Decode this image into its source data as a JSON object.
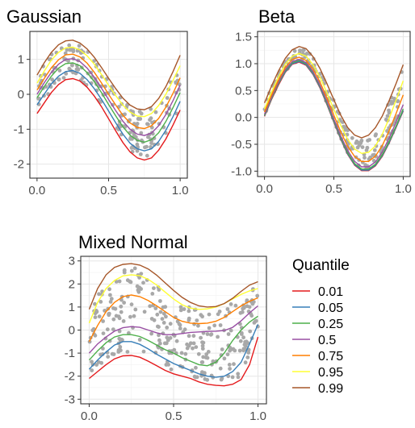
{
  "chart_data": [
    {
      "type": "scatter",
      "title": "Gaussian",
      "xlabel": "",
      "ylabel": "",
      "xlim": [
        -0.05,
        1.05
      ],
      "ylim": [
        -2.4,
        1.8
      ],
      "xticks": [
        0.0,
        0.5,
        1.0
      ],
      "xtick_labels": [
        "0.0",
        "0.5",
        "1.0"
      ],
      "yticks": [
        -2,
        -1,
        0,
        1
      ],
      "ytick_labels": [
        "-2",
        "-1",
        "0",
        "1"
      ],
      "grid": true,
      "point_color": "#a8a8a8",
      "x": [
        0.0,
        0.05,
        0.1,
        0.15,
        0.2,
        0.25,
        0.3,
        0.35,
        0.4,
        0.45,
        0.5,
        0.55,
        0.6,
        0.65,
        0.7,
        0.75,
        0.8,
        0.85,
        0.9,
        0.95,
        1.0
      ],
      "series": [
        {
          "quantile": "0.01",
          "color": "#e41a1c",
          "values": [
            -0.55,
            -0.25,
            0.05,
            0.28,
            0.42,
            0.45,
            0.38,
            0.2,
            -0.05,
            -0.35,
            -0.7,
            -1.05,
            -1.38,
            -1.65,
            -1.82,
            -1.88,
            -1.82,
            -1.6,
            -1.28,
            -0.88,
            -0.45
          ]
        },
        {
          "quantile": "0.05",
          "color": "#377eb8",
          "values": [
            -0.3,
            0.0,
            0.3,
            0.52,
            0.65,
            0.68,
            0.6,
            0.42,
            0.16,
            -0.14,
            -0.48,
            -0.82,
            -1.14,
            -1.4,
            -1.56,
            -1.62,
            -1.56,
            -1.35,
            -1.03,
            -0.64,
            -0.2
          ]
        },
        {
          "quantile": "0.25",
          "color": "#4daf4a",
          "values": [
            -0.1,
            0.22,
            0.52,
            0.75,
            0.88,
            0.9,
            0.82,
            0.62,
            0.36,
            0.05,
            -0.29,
            -0.62,
            -0.93,
            -1.17,
            -1.32,
            -1.37,
            -1.3,
            -1.1,
            -0.78,
            -0.38,
            0.05
          ]
        },
        {
          "quantile": "0.5",
          "color": "#984ea3",
          "values": [
            0.0,
            0.33,
            0.63,
            0.86,
            1.0,
            1.02,
            0.94,
            0.75,
            0.49,
            0.18,
            -0.15,
            -0.47,
            -0.77,
            -1.0,
            -1.14,
            -1.18,
            -1.11,
            -0.9,
            -0.58,
            -0.18,
            0.26
          ]
        },
        {
          "quantile": "0.75",
          "color": "#ff7f00",
          "values": [
            0.12,
            0.45,
            0.76,
            0.99,
            1.13,
            1.15,
            1.07,
            0.89,
            0.63,
            0.33,
            0.0,
            -0.31,
            -0.6,
            -0.82,
            -0.95,
            -0.98,
            -0.9,
            -0.69,
            -0.37,
            0.03,
            0.47
          ]
        },
        {
          "quantile": "0.95",
          "color": "#ffff33",
          "values": [
            0.32,
            0.66,
            0.98,
            1.2,
            1.33,
            1.35,
            1.27,
            1.1,
            0.86,
            0.57,
            0.26,
            -0.04,
            -0.31,
            -0.51,
            -0.62,
            -0.64,
            -0.55,
            -0.32,
            0.0,
            0.4,
            0.82
          ]
        },
        {
          "quantile": "0.99",
          "color": "#a65628",
          "values": [
            0.55,
            0.9,
            1.2,
            1.42,
            1.53,
            1.55,
            1.47,
            1.3,
            1.06,
            0.77,
            0.46,
            0.16,
            -0.11,
            -0.31,
            -0.42,
            -0.44,
            -0.35,
            -0.12,
            0.22,
            0.65,
            1.12
          ]
        }
      ]
    },
    {
      "type": "scatter",
      "title": "Beta",
      "xlabel": "",
      "ylabel": "",
      "xlim": [
        -0.05,
        1.05
      ],
      "ylim": [
        -1.1,
        1.6
      ],
      "xticks": [
        0.0,
        0.5,
        1.0
      ],
      "xtick_labels": [
        "0.0",
        "0.5",
        "1.0"
      ],
      "yticks": [
        -1.0,
        -0.5,
        0.0,
        0.5,
        1.0,
        1.5
      ],
      "ytick_labels": [
        "-1.0",
        "-0.5",
        "0.0",
        "0.5",
        "1.0",
        "1.5"
      ],
      "grid": true,
      "point_color": "#a8a8a8",
      "x": [
        0.0,
        0.05,
        0.1,
        0.15,
        0.2,
        0.25,
        0.3,
        0.35,
        0.4,
        0.45,
        0.5,
        0.55,
        0.6,
        0.65,
        0.7,
        0.75,
        0.8,
        0.85,
        0.9,
        0.95,
        1.0
      ],
      "series": [
        {
          "quantile": "0.01",
          "color": "#e41a1c",
          "values": [
            0.02,
            0.33,
            0.6,
            0.84,
            0.99,
            1.03,
            0.97,
            0.8,
            0.55,
            0.24,
            -0.09,
            -0.41,
            -0.69,
            -0.89,
            -0.99,
            -0.99,
            -0.9,
            -0.72,
            -0.47,
            -0.18,
            0.12
          ]
        },
        {
          "quantile": "0.05",
          "color": "#377eb8",
          "values": [
            0.03,
            0.34,
            0.62,
            0.85,
            1.0,
            1.04,
            0.98,
            0.81,
            0.56,
            0.25,
            -0.08,
            -0.4,
            -0.68,
            -0.88,
            -0.98,
            -0.98,
            -0.89,
            -0.71,
            -0.46,
            -0.17,
            0.13
          ]
        },
        {
          "quantile": "0.25",
          "color": "#4daf4a",
          "values": [
            0.04,
            0.35,
            0.63,
            0.87,
            1.02,
            1.06,
            1.0,
            0.83,
            0.58,
            0.27,
            -0.06,
            -0.38,
            -0.66,
            -0.86,
            -0.96,
            -0.96,
            -0.87,
            -0.69,
            -0.44,
            -0.15,
            0.16
          ]
        },
        {
          "quantile": "0.5",
          "color": "#984ea3",
          "values": [
            0.06,
            0.37,
            0.65,
            0.89,
            1.04,
            1.08,
            1.02,
            0.85,
            0.6,
            0.3,
            -0.03,
            -0.35,
            -0.62,
            -0.82,
            -0.92,
            -0.92,
            -0.83,
            -0.64,
            -0.38,
            -0.08,
            0.24
          ]
        },
        {
          "quantile": "0.75",
          "color": "#ff7f00",
          "values": [
            0.1,
            0.41,
            0.69,
            0.93,
            1.08,
            1.12,
            1.06,
            0.9,
            0.66,
            0.36,
            0.04,
            -0.27,
            -0.54,
            -0.73,
            -0.82,
            -0.82,
            -0.72,
            -0.52,
            -0.24,
            0.08,
            0.42
          ]
        },
        {
          "quantile": "0.95",
          "color": "#ffff33",
          "values": [
            0.16,
            0.47,
            0.75,
            0.99,
            1.14,
            1.19,
            1.14,
            0.98,
            0.75,
            0.46,
            0.15,
            -0.15,
            -0.41,
            -0.59,
            -0.67,
            -0.65,
            -0.53,
            -0.31,
            -0.01,
            0.33,
            0.68
          ]
        },
        {
          "quantile": "0.99",
          "color": "#a65628",
          "values": [
            0.27,
            0.58,
            0.86,
            1.1,
            1.26,
            1.32,
            1.28,
            1.13,
            0.91,
            0.63,
            0.33,
            0.04,
            -0.19,
            -0.33,
            -0.38,
            -0.33,
            -0.19,
            0.03,
            0.32,
            0.64,
            0.98
          ]
        }
      ]
    },
    {
      "type": "scatter",
      "title": "Mixed Normal",
      "xlabel": "",
      "ylabel": "",
      "xlim": [
        -0.05,
        1.05
      ],
      "ylim": [
        -3.2,
        3.2
      ],
      "xticks": [
        0.0,
        0.5,
        1.0
      ],
      "xtick_labels": [
        "0.0",
        "0.5",
        "1.0"
      ],
      "yticks": [
        -3,
        -2,
        -1,
        0,
        1,
        2,
        3
      ],
      "ytick_labels": [
        "-3",
        "-2",
        "-1",
        "0",
        "1",
        "2",
        "3"
      ],
      "grid": true,
      "point_color": "#a8a8a8",
      "x": [
        0.0,
        0.05,
        0.1,
        0.15,
        0.2,
        0.25,
        0.3,
        0.35,
        0.4,
        0.45,
        0.5,
        0.55,
        0.6,
        0.65,
        0.7,
        0.75,
        0.8,
        0.85,
        0.9,
        0.95,
        1.0
      ],
      "series": [
        {
          "quantile": "0.01",
          "color": "#e41a1c",
          "values": [
            -2.1,
            -1.8,
            -1.5,
            -1.25,
            -1.12,
            -1.1,
            -1.18,
            -1.35,
            -1.55,
            -1.75,
            -1.9,
            -2.0,
            -2.1,
            -2.25,
            -2.35,
            -2.4,
            -2.42,
            -2.35,
            -2.15,
            -1.5,
            -0.3
          ]
        },
        {
          "quantile": "0.05",
          "color": "#377eb8",
          "values": [
            -1.7,
            -1.3,
            -0.95,
            -0.65,
            -0.5,
            -0.5,
            -0.62,
            -0.82,
            -1.05,
            -1.25,
            -1.45,
            -1.6,
            -1.75,
            -1.9,
            -2.0,
            -2.05,
            -2.0,
            -1.8,
            -1.4,
            -0.6,
            0.25
          ]
        },
        {
          "quantile": "0.25",
          "color": "#4daf4a",
          "values": [
            -1.3,
            -0.9,
            -0.55,
            -0.3,
            -0.2,
            -0.2,
            -0.28,
            -0.45,
            -0.65,
            -0.85,
            -1.0,
            -1.2,
            -1.35,
            -1.5,
            -1.55,
            -1.4,
            -1.0,
            -0.45,
            0.0,
            0.35,
            0.6
          ]
        },
        {
          "quantile": "0.5",
          "color": "#984ea3",
          "values": [
            -1.0,
            -0.6,
            -0.3,
            -0.05,
            0.1,
            0.15,
            0.12,
            0.0,
            -0.12,
            -0.2,
            -0.2,
            -0.15,
            -0.1,
            -0.08,
            -0.06,
            -0.05,
            -0.02,
            0.12,
            0.4,
            0.75,
            1.05
          ]
        },
        {
          "quantile": "0.75",
          "color": "#ff7f00",
          "values": [
            -0.5,
            0.2,
            0.8,
            1.2,
            1.45,
            1.52,
            1.45,
            1.28,
            1.05,
            0.8,
            0.55,
            0.38,
            0.3,
            0.28,
            0.3,
            0.38,
            0.55,
            0.8,
            1.05,
            1.25,
            1.4
          ]
        },
        {
          "quantile": "0.95",
          "color": "#ffff33",
          "values": [
            0.3,
            1.2,
            1.8,
            2.15,
            2.35,
            2.4,
            2.36,
            2.2,
            1.95,
            1.65,
            1.35,
            1.1,
            0.95,
            0.9,
            0.92,
            1.0,
            1.15,
            1.35,
            1.55,
            1.7,
            1.8
          ]
        },
        {
          "quantile": "0.99",
          "color": "#a65628",
          "values": [
            0.9,
            1.8,
            2.4,
            2.72,
            2.85,
            2.88,
            2.82,
            2.65,
            2.38,
            2.05,
            1.72,
            1.42,
            1.2,
            1.05,
            1.0,
            1.02,
            1.15,
            1.38,
            1.68,
            1.95,
            2.1
          ]
        }
      ]
    }
  ],
  "legend": {
    "title": "Quantile",
    "items": [
      {
        "label": "0.01",
        "color": "#e41a1c"
      },
      {
        "label": "0.05",
        "color": "#377eb8"
      },
      {
        "label": "0.25",
        "color": "#4daf4a"
      },
      {
        "label": "0.5",
        "color": "#984ea3"
      },
      {
        "label": "0.75",
        "color": "#ff7f00"
      },
      {
        "label": "0.95",
        "color": "#ffff33"
      },
      {
        "label": "0.99",
        "color": "#a65628"
      }
    ]
  }
}
